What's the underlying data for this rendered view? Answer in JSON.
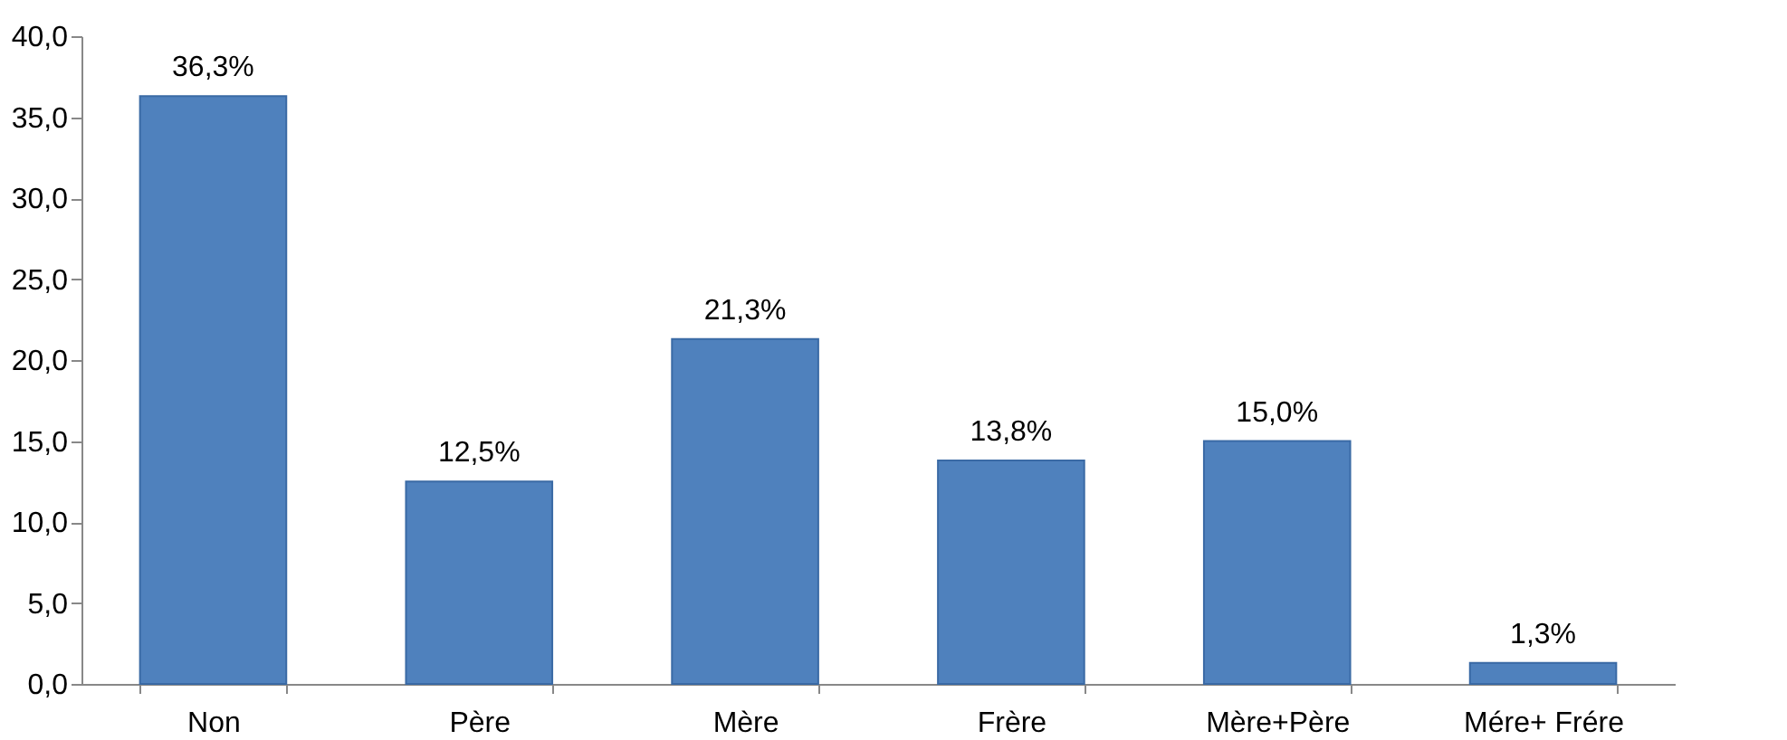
{
  "chart_data": {
    "type": "bar",
    "categories": [
      "Non",
      "Père",
      "Mère",
      "Frère",
      "Mère+Père",
      "Mére+ Frére"
    ],
    "values": [
      36.3,
      12.5,
      21.3,
      13.8,
      15.0,
      1.3
    ],
    "value_labels": [
      "36,3%",
      "12,5%",
      "21,3%",
      "13,8%",
      "15,0%",
      "1,3%"
    ],
    "color": "#4f81bd",
    "ylim": [
      0,
      40
    ],
    "yticks": [
      {
        "value": 0,
        "label": "0,0"
      },
      {
        "value": 5,
        "label": "5,0"
      },
      {
        "value": 10,
        "label": "10,0"
      },
      {
        "value": 15,
        "label": "15,0"
      },
      {
        "value": 20,
        "label": "20,0"
      },
      {
        "value": 25,
        "label": "25,0"
      },
      {
        "value": 30,
        "label": "30,0"
      },
      {
        "value": 35,
        "label": "35,0"
      },
      {
        "value": 40,
        "label": "40,0"
      }
    ],
    "grid": false
  }
}
